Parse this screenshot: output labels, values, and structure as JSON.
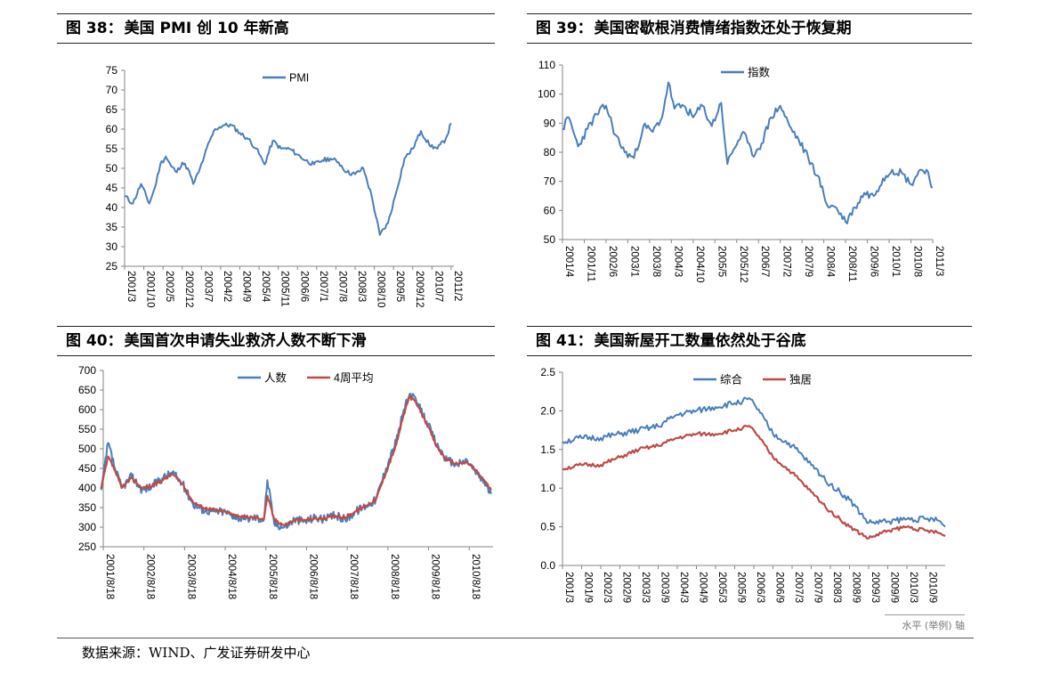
{
  "panels": [
    {
      "fig_label": "图",
      "fig_num": "38：",
      "title": "美国 PMI 创 10 年新高"
    },
    {
      "fig_label": "图",
      "fig_num": "39：",
      "title": "美国密歇根消费情绪指数还处于恢复期"
    },
    {
      "fig_label": "图",
      "fig_num": "40：",
      "title": "美国首次申请失业救济人数不断下滑"
    },
    {
      "fig_label": "图",
      "fig_num": "41：",
      "title": "美国新屋开工数量依然处于谷底"
    }
  ],
  "source": "数据来源：WIND、广发证券研发中心",
  "watermark": "水平 (举例) 轴",
  "colors": {
    "blue": "#4a7ebb",
    "red": "#be4b48",
    "axis": "#868686",
    "grid": "#d9d9d9"
  },
  "chart_data": [
    {
      "type": "line",
      "title": "",
      "ylim": [
        25,
        75
      ],
      "yticks": [
        25,
        30,
        35,
        40,
        45,
        50,
        55,
        60,
        65,
        70,
        75
      ],
      "xlim": [
        "2001/3",
        "2011/3"
      ],
      "xticks": [
        "2001/3",
        "2001/10",
        "2002/5",
        "2002/12",
        "2003/7",
        "2004/2",
        "2004/9",
        "2005/4",
        "2005/11",
        "2006/6",
        "2007/1",
        "2007/8",
        "2008/3",
        "2008/10",
        "2009/5",
        "2009/12",
        "2010/7",
        "2011/2"
      ],
      "legend": "top-center",
      "series": [
        {
          "name": "PMI",
          "color": "#4a7ebb",
          "x": [
            "2001/3",
            "2001/6",
            "2001/9",
            "2001/12",
            "2002/2",
            "2002/4",
            "2002/6",
            "2002/8",
            "2002/10",
            "2002/12",
            "2003/2",
            "2003/4",
            "2003/6",
            "2003/8",
            "2003/10",
            "2003/12",
            "2004/3",
            "2004/6",
            "2004/9",
            "2004/12",
            "2005/3",
            "2005/6",
            "2005/9",
            "2005/12",
            "2006/3",
            "2006/6",
            "2006/9",
            "2006/12",
            "2007/3",
            "2007/6",
            "2007/9",
            "2007/12",
            "2008/3",
            "2008/6",
            "2008/9",
            "2008/12",
            "2009/3",
            "2009/6",
            "2009/9",
            "2009/12",
            "2010/3",
            "2010/6",
            "2010/9",
            "2010/12",
            "2011/2"
          ],
          "y": [
            43,
            41,
            46,
            41,
            45,
            51,
            53,
            50.5,
            49,
            51.5,
            50,
            46,
            49,
            53,
            57,
            60,
            61,
            61,
            59,
            57.5,
            55,
            51,
            57,
            55,
            55,
            53.5,
            52,
            51,
            52,
            52.5,
            51.5,
            49,
            48.5,
            50,
            43,
            33,
            36,
            44,
            52.5,
            55,
            59.5,
            56,
            55,
            57.5,
            61.5
          ]
        }
      ]
    },
    {
      "type": "line",
      "title": "",
      "ylim": [
        50,
        110
      ],
      "yticks": [
        50,
        60,
        70,
        80,
        90,
        100,
        110
      ],
      "xlim": [
        "2001/4",
        "2011/3"
      ],
      "xticks": [
        "2001/4",
        "2001/11",
        "2002/6",
        "2003/1",
        "2003/8",
        "2004/3",
        "2004/10",
        "2005/5",
        "2005/12",
        "2006/7",
        "2007/2",
        "2007/9",
        "2008/4",
        "2008/11",
        "2009/6",
        "2010/1",
        "2010/8",
        "2011/3"
      ],
      "legend": "top-center",
      "series": [
        {
          "name": "指数",
          "color": "#4a7ebb",
          "x": [
            "2001/4",
            "2001/6",
            "2001/9",
            "2001/12",
            "2002/3",
            "2002/6",
            "2002/9",
            "2002/12",
            "2003/3",
            "2003/6",
            "2003/9",
            "2003/12",
            "2004/2",
            "2004/4",
            "2004/7",
            "2004/10",
            "2005/1",
            "2005/4",
            "2005/7",
            "2005/9",
            "2005/11",
            "2006/2",
            "2006/5",
            "2006/8",
            "2006/11",
            "2007/2",
            "2007/5",
            "2007/8",
            "2007/11",
            "2008/2",
            "2008/5",
            "2008/8",
            "2008/11",
            "2009/2",
            "2009/5",
            "2009/8",
            "2009/11",
            "2010/2",
            "2010/5",
            "2010/8",
            "2010/11",
            "2011/1",
            "2011/3"
          ],
          "y": [
            88,
            92,
            82,
            88,
            93,
            96,
            86,
            80,
            78,
            89,
            87,
            92,
            104,
            95,
            96,
            92,
            96,
            89,
            97,
            76,
            81,
            87,
            79,
            83,
            92,
            96,
            89,
            84,
            78,
            72,
            62,
            61,
            56,
            61,
            66,
            65,
            71,
            74,
            73,
            69,
            74,
            74,
            68
          ]
        }
      ]
    },
    {
      "type": "line",
      "title": "",
      "ylim": [
        250,
        700
      ],
      "yticks": [
        250,
        300,
        350,
        400,
        450,
        500,
        550,
        600,
        650,
        700
      ],
      "xlim": [
        "2001/8/18",
        "2011/3/19"
      ],
      "xticks": [
        "2001/8/18",
        "2002/8/18",
        "2003/8/18",
        "2004/8/18",
        "2005/8/18",
        "2006/8/18",
        "2007/8/18",
        "2008/8/18",
        "2009/8/18",
        "2010/8/18"
      ],
      "legend": "top-center",
      "series": [
        {
          "name": "人数",
          "color": "#4a7ebb",
          "x": [
            "2001/8",
            "2001/10",
            "2001/12",
            "2002/2",
            "2002/5",
            "2002/8",
            "2002/11",
            "2003/2",
            "2003/5",
            "2003/8",
            "2003/11",
            "2004/2",
            "2004/5",
            "2004/8",
            "2004/11",
            "2005/2",
            "2005/5",
            "2005/8",
            "2005/9",
            "2005/11",
            "2006/2",
            "2006/5",
            "2006/8",
            "2006/11",
            "2007/2",
            "2007/5",
            "2007/8",
            "2007/11",
            "2008/2",
            "2008/5",
            "2008/8",
            "2008/11",
            "2009/1",
            "2009/3",
            "2009/5",
            "2009/8",
            "2009/11",
            "2010/2",
            "2010/5",
            "2010/8",
            "2010/11",
            "2011/1",
            "2011/3"
          ],
          "y": [
            395,
            515,
            450,
            400,
            430,
            395,
            405,
            425,
            440,
            410,
            360,
            345,
            340,
            340,
            330,
            320,
            325,
            320,
            420,
            310,
            300,
            320,
            315,
            325,
            320,
            330,
            320,
            340,
            355,
            370,
            450,
            520,
            590,
            640,
            620,
            570,
            510,
            470,
            460,
            470,
            435,
            415,
            385
          ]
        },
        {
          "name": "4周平均",
          "color": "#be4b48",
          "x": [
            "2001/8",
            "2001/10",
            "2001/12",
            "2002/2",
            "2002/5",
            "2002/8",
            "2002/11",
            "2003/2",
            "2003/5",
            "2003/8",
            "2003/11",
            "2004/2",
            "2004/5",
            "2004/8",
            "2004/11",
            "2005/2",
            "2005/5",
            "2005/8",
            "2005/9",
            "2005/11",
            "2006/2",
            "2006/5",
            "2006/8",
            "2006/11",
            "2007/2",
            "2007/5",
            "2007/8",
            "2007/11",
            "2008/2",
            "2008/5",
            "2008/8",
            "2008/11",
            "2009/1",
            "2009/3",
            "2009/5",
            "2009/8",
            "2009/11",
            "2010/2",
            "2010/5",
            "2010/8",
            "2010/11",
            "2011/1",
            "2011/3"
          ],
          "y": [
            400,
            480,
            445,
            400,
            425,
            400,
            405,
            420,
            435,
            410,
            365,
            350,
            345,
            340,
            333,
            325,
            325,
            322,
            380,
            320,
            305,
            318,
            318,
            322,
            322,
            328,
            325,
            340,
            355,
            370,
            440,
            510,
            580,
            635,
            615,
            565,
            505,
            470,
            462,
            465,
            440,
            420,
            395
          ]
        }
      ]
    },
    {
      "type": "line",
      "title": "",
      "ylim": [
        0,
        2.5
      ],
      "yticks": [
        "0.0",
        "0.5",
        "1.0",
        "1.5",
        "2.0",
        "2.5"
      ],
      "xlim": [
        "2001/3",
        "2011/3"
      ],
      "xticks": [
        "2001/3",
        "2001/9",
        "2002/3",
        "2002/9",
        "2003/3",
        "2003/9",
        "2004/3",
        "2004/9",
        "2005/3",
        "2005/9",
        "2006/3",
        "2006/9",
        "2007/3",
        "2007/9",
        "2008/3",
        "2008/9",
        "2009/3",
        "2009/9",
        "2010/3",
        "2010/9"
      ],
      "legend": "top-center",
      "series": [
        {
          "name": "综合",
          "color": "#4a7ebb",
          "x": [
            "2001/3",
            "2001/9",
            "2002/3",
            "2002/9",
            "2003/3",
            "2003/9",
            "2004/3",
            "2004/9",
            "2005/3",
            "2005/9",
            "2006/1",
            "2006/3",
            "2006/9",
            "2007/3",
            "2007/9",
            "2008/3",
            "2008/9",
            "2009/3",
            "2009/9",
            "2010/3",
            "2010/9",
            "2011/1",
            "2011/3"
          ],
          "y": [
            1.6,
            1.65,
            1.65,
            1.7,
            1.75,
            1.8,
            1.95,
            2.0,
            2.05,
            2.1,
            2.15,
            2.1,
            1.7,
            1.55,
            1.3,
            1.05,
            0.85,
            0.55,
            0.57,
            0.6,
            0.6,
            0.58,
            0.5
          ]
        },
        {
          "name": "独居",
          "color": "#be4b48",
          "x": [
            "2001/3",
            "2001/9",
            "2002/3",
            "2002/9",
            "2003/3",
            "2003/9",
            "2004/3",
            "2004/9",
            "2005/3",
            "2005/9",
            "2006/1",
            "2006/3",
            "2006/9",
            "2007/3",
            "2007/9",
            "2008/3",
            "2008/9",
            "2009/3",
            "2009/9",
            "2010/3",
            "2010/9",
            "2011/1",
            "2011/3"
          ],
          "y": [
            1.25,
            1.3,
            1.3,
            1.4,
            1.5,
            1.55,
            1.65,
            1.7,
            1.7,
            1.75,
            1.8,
            1.75,
            1.4,
            1.2,
            0.95,
            0.7,
            0.5,
            0.35,
            0.45,
            0.5,
            0.45,
            0.42,
            0.38
          ]
        }
      ]
    }
  ]
}
